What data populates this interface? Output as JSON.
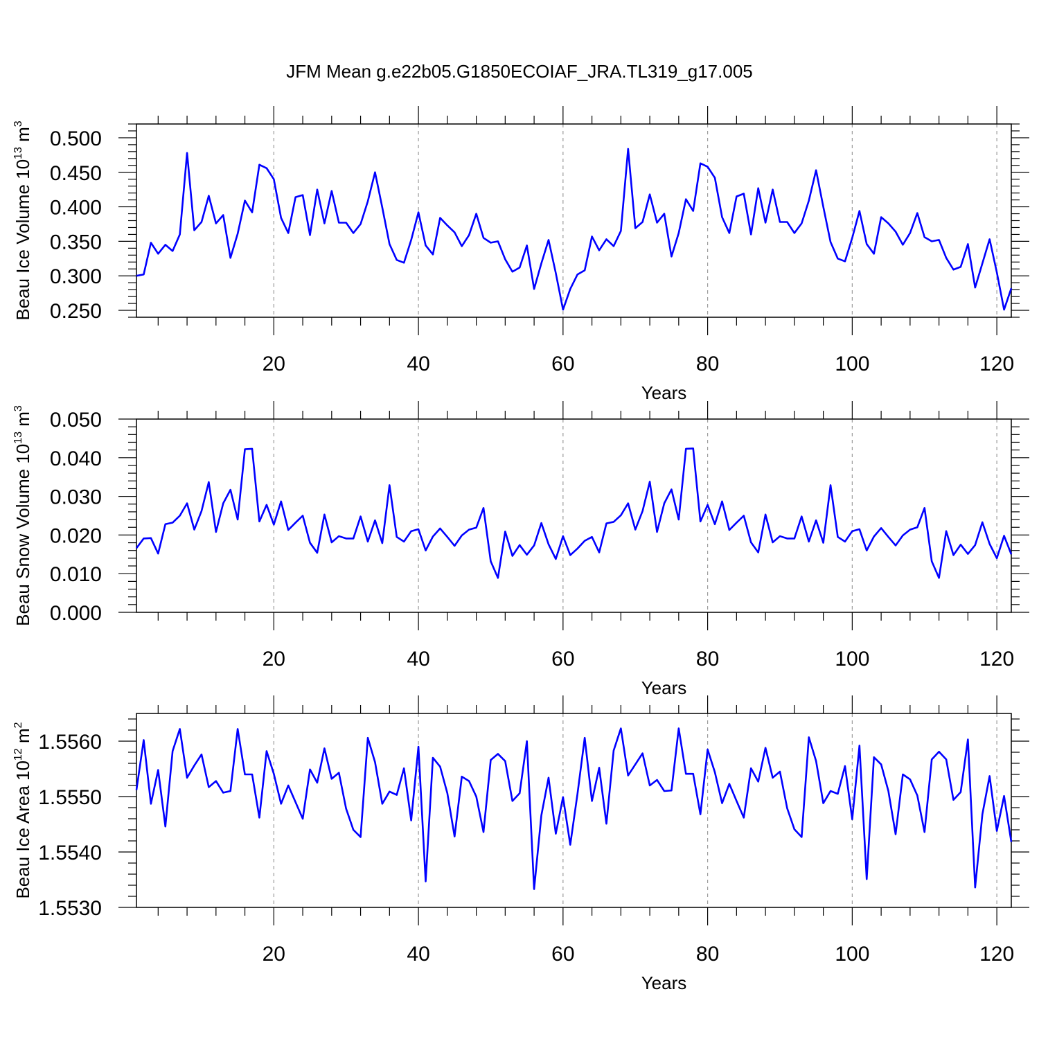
{
  "title": "JFM Mean g.e22b05.G1850ECOIAF_JRA.TL319_g17.005",
  "colors": {
    "series": "#0000ff",
    "axis": "#000000",
    "grid": "#9a9a9a"
  },
  "chart_data": [
    {
      "type": "line",
      "xlabel": "Years",
      "ylabel": {
        "prefix": "Beau Ice Volume 10",
        "exponent": "13",
        "unit": " m",
        "unit_exponent": "3"
      },
      "xlim": [
        1,
        122
      ],
      "ylim": [
        0.24,
        0.52
      ],
      "x_ticks": [
        20,
        40,
        60,
        80,
        100,
        120
      ],
      "x_tick_labels": [
        "20",
        "40",
        "60",
        "80",
        "100",
        "120"
      ],
      "y_ticks": [
        0.25,
        0.3,
        0.35,
        0.4,
        0.45,
        0.5
      ],
      "y_tick_labels": [
        "0.250",
        "0.300",
        "0.350",
        "0.400",
        "0.450",
        "0.500"
      ],
      "grid": "vertical dashed at major x ticks",
      "x": [
        1,
        2,
        3,
        4,
        5,
        6,
        7,
        8,
        9,
        10,
        11,
        12,
        13,
        14,
        15,
        16,
        17,
        18,
        19,
        20,
        21,
        22,
        23,
        24,
        25,
        26,
        27,
        28,
        29,
        30,
        31,
        32,
        33,
        34,
        35,
        36,
        37,
        38,
        39,
        40,
        41,
        42,
        43,
        44,
        45,
        46,
        47,
        48,
        49,
        50,
        51,
        52,
        53,
        54,
        55,
        56,
        57,
        58,
        59,
        60,
        61,
        62,
        63,
        64,
        65,
        66,
        67,
        68,
        69,
        70,
        71,
        72,
        73,
        74,
        75,
        76,
        77,
        78,
        79,
        80,
        81,
        82,
        83,
        84,
        85,
        86,
        87,
        88,
        89,
        90,
        91,
        92,
        93,
        94,
        95,
        96,
        97,
        98,
        99,
        100,
        101,
        102,
        103,
        104,
        105,
        106,
        107,
        108,
        109,
        110,
        111,
        112,
        113,
        114,
        115,
        116,
        117,
        118,
        119,
        120,
        121,
        122
      ],
      "series": [
        {
          "values": [
            0.3,
            0.302,
            0.348,
            0.332,
            0.345,
            0.336,
            0.36,
            0.478,
            0.366,
            0.378,
            0.416,
            0.376,
            0.388,
            0.326,
            0.361,
            0.409,
            0.392,
            0.461,
            0.456,
            0.44,
            0.384,
            0.362,
            0.414,
            0.417,
            0.359,
            0.425,
            0.376,
            0.423,
            0.377,
            0.377,
            0.362,
            0.375,
            0.408,
            0.45,
            0.399,
            0.346,
            0.323,
            0.319,
            0.352,
            0.392,
            0.344,
            0.331,
            0.384,
            0.373,
            0.363,
            0.343,
            0.359,
            0.39,
            0.355,
            0.348,
            0.35,
            0.324,
            0.306,
            0.312,
            0.344,
            0.281,
            0.318,
            0.352,
            0.304,
            0.251,
            0.281,
            0.302,
            0.308,
            0.357,
            0.337,
            0.353,
            0.343,
            0.365,
            0.484,
            0.369,
            0.378,
            0.418,
            0.377,
            0.39,
            0.328,
            0.362,
            0.411,
            0.394,
            0.463,
            0.458,
            0.442,
            0.385,
            0.362,
            0.415,
            0.419,
            0.36,
            0.427,
            0.377,
            0.425,
            0.378,
            0.378,
            0.362,
            0.376,
            0.409,
            0.453,
            0.4,
            0.349,
            0.325,
            0.321,
            0.355,
            0.394,
            0.346,
            0.332,
            0.385,
            0.376,
            0.364,
            0.345,
            0.362,
            0.391,
            0.356,
            0.35,
            0.352,
            0.326,
            0.309,
            0.313,
            0.346,
            0.283,
            0.318,
            0.353,
            0.305,
            0.251,
            0.282
          ]
        }
      ]
    },
    {
      "type": "line",
      "xlabel": "Years",
      "ylabel": {
        "prefix": "Beau Snow Volume 10",
        "exponent": "13",
        "unit": " m",
        "unit_exponent": "3"
      },
      "xlim": [
        1,
        122
      ],
      "ylim": [
        0.0,
        0.05
      ],
      "x_ticks": [
        20,
        40,
        60,
        80,
        100,
        120
      ],
      "x_tick_labels": [
        "20",
        "40",
        "60",
        "80",
        "100",
        "120"
      ],
      "y_ticks": [
        0.0,
        0.01,
        0.02,
        0.03,
        0.04,
        0.05
      ],
      "y_tick_labels": [
        "0.000",
        "0.010",
        "0.020",
        "0.030",
        "0.040",
        "0.050"
      ],
      "grid": "vertical dashed at major x ticks",
      "x": [
        1,
        2,
        3,
        4,
        5,
        6,
        7,
        8,
        9,
        10,
        11,
        12,
        13,
        14,
        15,
        16,
        17,
        18,
        19,
        20,
        21,
        22,
        23,
        24,
        25,
        26,
        27,
        28,
        29,
        30,
        31,
        32,
        33,
        34,
        35,
        36,
        37,
        38,
        39,
        40,
        41,
        42,
        43,
        44,
        45,
        46,
        47,
        48,
        49,
        50,
        51,
        52,
        53,
        54,
        55,
        56,
        57,
        58,
        59,
        60,
        61,
        62,
        63,
        64,
        65,
        66,
        67,
        68,
        69,
        70,
        71,
        72,
        73,
        74,
        75,
        76,
        77,
        78,
        79,
        80,
        81,
        82,
        83,
        84,
        85,
        86,
        87,
        88,
        89,
        90,
        91,
        92,
        93,
        94,
        95,
        96,
        97,
        98,
        99,
        100,
        101,
        102,
        103,
        104,
        105,
        106,
        107,
        108,
        109,
        110,
        111,
        112,
        113,
        114,
        115,
        116,
        117,
        118,
        119,
        120,
        121,
        122
      ],
      "series": [
        {
          "values": [
            0.0166,
            0.0191,
            0.0192,
            0.0152,
            0.0228,
            0.0232,
            0.025,
            0.0282,
            0.0214,
            0.0262,
            0.0337,
            0.0208,
            0.0282,
            0.0317,
            0.024,
            0.0422,
            0.0423,
            0.0235,
            0.0278,
            0.0227,
            0.0287,
            0.0213,
            0.0232,
            0.025,
            0.018,
            0.0154,
            0.0253,
            0.0181,
            0.0197,
            0.0191,
            0.0191,
            0.0248,
            0.0183,
            0.0238,
            0.0179,
            0.0329,
            0.0195,
            0.0183,
            0.021,
            0.0215,
            0.016,
            0.0196,
            0.0217,
            0.0195,
            0.0172,
            0.0199,
            0.0214,
            0.0219,
            0.027,
            0.0132,
            0.0089,
            0.0209,
            0.0146,
            0.0174,
            0.0149,
            0.0173,
            0.0231,
            0.0176,
            0.0138,
            0.0197,
            0.0148,
            0.0165,
            0.0185,
            0.0195,
            0.0155,
            0.023,
            0.0234,
            0.0251,
            0.0282,
            0.0214,
            0.0262,
            0.0338,
            0.0208,
            0.0282,
            0.0318,
            0.024,
            0.0423,
            0.0424,
            0.0235,
            0.0278,
            0.0228,
            0.0287,
            0.0213,
            0.0232,
            0.025,
            0.0181,
            0.0155,
            0.0253,
            0.0181,
            0.0197,
            0.0191,
            0.0191,
            0.0248,
            0.0183,
            0.0238,
            0.018,
            0.0329,
            0.0195,
            0.0183,
            0.021,
            0.0215,
            0.016,
            0.0196,
            0.0218,
            0.0195,
            0.0173,
            0.0199,
            0.0214,
            0.022,
            0.027,
            0.0132,
            0.0089,
            0.021,
            0.0148,
            0.0175,
            0.0151,
            0.0174,
            0.0233,
            0.0177,
            0.014,
            0.0198,
            0.015
          ]
        }
      ]
    },
    {
      "type": "line",
      "xlabel": "Years",
      "ylabel": {
        "prefix": "Beau Ice Area 10",
        "exponent": "12",
        "unit": " m",
        "unit_exponent": "2"
      },
      "xlim": [
        1,
        122
      ],
      "ylim": [
        1.553,
        1.5565
      ],
      "x_ticks": [
        20,
        40,
        60,
        80,
        100,
        120
      ],
      "x_tick_labels": [
        "20",
        "40",
        "60",
        "80",
        "100",
        "120"
      ],
      "y_ticks": [
        1.553,
        1.554,
        1.555,
        1.556
      ],
      "y_tick_labels": [
        "1.5530",
        "1.5540",
        "1.5550",
        "1.5560"
      ],
      "grid": "vertical dashed at major x ticks",
      "x": [
        1,
        2,
        3,
        4,
        5,
        6,
        7,
        8,
        9,
        10,
        11,
        12,
        13,
        14,
        15,
        16,
        17,
        18,
        19,
        20,
        21,
        22,
        23,
        24,
        25,
        26,
        27,
        28,
        29,
        30,
        31,
        32,
        33,
        34,
        35,
        36,
        37,
        38,
        39,
        40,
        41,
        42,
        43,
        44,
        45,
        46,
        47,
        48,
        49,
        50,
        51,
        52,
        53,
        54,
        55,
        56,
        57,
        58,
        59,
        60,
        61,
        62,
        63,
        64,
        65,
        66,
        67,
        68,
        69,
        70,
        71,
        72,
        73,
        74,
        75,
        76,
        77,
        78,
        79,
        80,
        81,
        82,
        83,
        84,
        85,
        86,
        87,
        88,
        89,
        90,
        91,
        92,
        93,
        94,
        95,
        96,
        97,
        98,
        99,
        100,
        101,
        102,
        103,
        104,
        105,
        106,
        107,
        108,
        109,
        110,
        111,
        112,
        113,
        114,
        115,
        116,
        117,
        118,
        119,
        120,
        121,
        122
      ],
      "series": [
        {
          "values": [
            1.55512,
            1.55602,
            1.55487,
            1.55548,
            1.55446,
            1.55582,
            1.55622,
            1.55534,
            1.55556,
            1.55576,
            1.55517,
            1.55528,
            1.55507,
            1.5551,
            1.55622,
            1.5554,
            1.5554,
            1.55462,
            1.55582,
            1.55541,
            1.55487,
            1.5552,
            1.5549,
            1.5546,
            1.55549,
            1.55525,
            1.55587,
            1.55532,
            1.55543,
            1.55478,
            1.5544,
            1.55427,
            1.55606,
            1.55562,
            1.55487,
            1.55509,
            1.55503,
            1.55551,
            1.55457,
            1.5559,
            1.55347,
            1.5557,
            1.55554,
            1.55506,
            1.55428,
            1.55536,
            1.55528,
            1.555,
            1.55436,
            1.55566,
            1.55577,
            1.55564,
            1.55492,
            1.55506,
            1.556,
            1.55333,
            1.55466,
            1.55534,
            1.55433,
            1.55499,
            1.55413,
            1.55505,
            1.55606,
            1.55492,
            1.55552,
            1.55451,
            1.55583,
            1.55623,
            1.55538,
            1.55558,
            1.55578,
            1.5552,
            1.5553,
            1.5551,
            1.55511,
            1.55623,
            1.55541,
            1.55541,
            1.55468,
            1.55585,
            1.55544,
            1.55488,
            1.55523,
            1.55492,
            1.55462,
            1.55551,
            1.55527,
            1.55588,
            1.55534,
            1.55545,
            1.55479,
            1.55441,
            1.55427,
            1.55607,
            1.55564,
            1.55488,
            1.5551,
            1.55505,
            1.55555,
            1.55459,
            1.55592,
            1.55351,
            1.55571,
            1.55558,
            1.5551,
            1.55432,
            1.5554,
            1.55531,
            1.55502,
            1.55436,
            1.55567,
            1.55581,
            1.55567,
            1.55494,
            1.55508,
            1.55603,
            1.55336,
            1.55468,
            1.55537,
            1.55438,
            1.55501,
            1.55418
          ]
        }
      ]
    }
  ]
}
